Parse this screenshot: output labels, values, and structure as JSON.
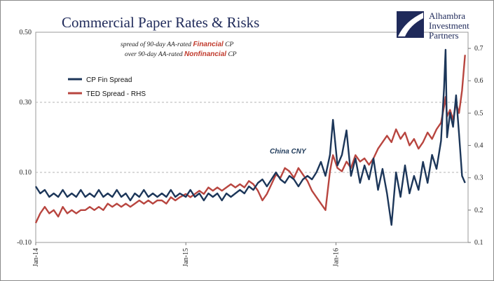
{
  "chart_data": {
    "type": "line",
    "title": "Commercial Paper Rates & Risks",
    "annotation": {
      "line1_prefix": "spread of 90-day AA-rated ",
      "line1_highlight": "Financial",
      "line1_suffix": " CP",
      "line2_prefix": "over 90-day AA-rated ",
      "line2_highlight": "Nonfinancial",
      "line2_suffix": " CP"
    },
    "event_label": "China CNY",
    "x_ticks": [
      "Jan-14",
      "Jan-15",
      "Jan-16"
    ],
    "y_left": {
      "min": -0.1,
      "max": 0.5,
      "ticks": [
        "0.50",
        "0.30",
        "0.10",
        "-0.10"
      ],
      "tick_values": [
        0.5,
        0.3,
        0.1,
        -0.1
      ]
    },
    "y_right": {
      "min": 0.1,
      "max": 0.75,
      "ticks": [
        "0.7",
        "0.6",
        "0.5",
        "0.4",
        "0.3",
        "0.2",
        "0.1"
      ],
      "tick_values": [
        0.7,
        0.6,
        0.5,
        0.4,
        0.3,
        0.2,
        0.1
      ]
    },
    "grid": "horizontal dashed",
    "legend_position": "upper-left",
    "colors": {
      "cp": "#1c3659",
      "ted": "#b8453f",
      "title": "#1f2a5a"
    },
    "series": [
      {
        "name": "CP Fin Spread",
        "axis": "left",
        "color": "#1c3659",
        "points": [
          [
            2014.0,
            0.06
          ],
          [
            2014.03,
            0.04
          ],
          [
            2014.06,
            0.05
          ],
          [
            2014.09,
            0.03
          ],
          [
            2014.12,
            0.04
          ],
          [
            2014.15,
            0.03
          ],
          [
            2014.18,
            0.05
          ],
          [
            2014.21,
            0.03
          ],
          [
            2014.24,
            0.04
          ],
          [
            2014.27,
            0.03
          ],
          [
            2014.3,
            0.05
          ],
          [
            2014.33,
            0.03
          ],
          [
            2014.36,
            0.04
          ],
          [
            2014.39,
            0.03
          ],
          [
            2014.42,
            0.05
          ],
          [
            2014.45,
            0.03
          ],
          [
            2014.48,
            0.04
          ],
          [
            2014.51,
            0.03
          ],
          [
            2014.54,
            0.05
          ],
          [
            2014.57,
            0.03
          ],
          [
            2014.6,
            0.04
          ],
          [
            2014.63,
            0.02
          ],
          [
            2014.66,
            0.04
          ],
          [
            2014.69,
            0.03
          ],
          [
            2014.72,
            0.05
          ],
          [
            2014.75,
            0.03
          ],
          [
            2014.78,
            0.04
          ],
          [
            2014.81,
            0.03
          ],
          [
            2014.84,
            0.04
          ],
          [
            2014.87,
            0.03
          ],
          [
            2014.9,
            0.05
          ],
          [
            2014.93,
            0.03
          ],
          [
            2014.96,
            0.04
          ],
          [
            2015.0,
            0.03
          ],
          [
            2015.03,
            0.05
          ],
          [
            2015.06,
            0.03
          ],
          [
            2015.09,
            0.04
          ],
          [
            2015.12,
            0.02
          ],
          [
            2015.15,
            0.04
          ],
          [
            2015.18,
            0.03
          ],
          [
            2015.21,
            0.04
          ],
          [
            2015.24,
            0.02
          ],
          [
            2015.27,
            0.04
          ],
          [
            2015.3,
            0.03
          ],
          [
            2015.33,
            0.04
          ],
          [
            2015.36,
            0.05
          ],
          [
            2015.39,
            0.04
          ],
          [
            2015.42,
            0.06
          ],
          [
            2015.45,
            0.05
          ],
          [
            2015.48,
            0.07
          ],
          [
            2015.51,
            0.08
          ],
          [
            2015.54,
            0.06
          ],
          [
            2015.57,
            0.08
          ],
          [
            2015.6,
            0.1
          ],
          [
            2015.63,
            0.08
          ],
          [
            2015.66,
            0.07
          ],
          [
            2015.69,
            0.09
          ],
          [
            2015.72,
            0.08
          ],
          [
            2015.75,
            0.06
          ],
          [
            2015.78,
            0.08
          ],
          [
            2015.81,
            0.09
          ],
          [
            2015.84,
            0.08
          ],
          [
            2015.87,
            0.1
          ],
          [
            2015.9,
            0.13
          ],
          [
            2015.93,
            0.09
          ],
          [
            2015.96,
            0.15
          ],
          [
            2015.98,
            0.25
          ],
          [
            2016.01,
            0.12
          ],
          [
            2016.04,
            0.15
          ],
          [
            2016.07,
            0.22
          ],
          [
            2016.1,
            0.09
          ],
          [
            2016.13,
            0.14
          ],
          [
            2016.16,
            0.07
          ],
          [
            2016.19,
            0.12
          ],
          [
            2016.22,
            0.08
          ],
          [
            2016.25,
            0.14
          ],
          [
            2016.28,
            0.05
          ],
          [
            2016.31,
            0.11
          ],
          [
            2016.34,
            0.04
          ],
          [
            2016.37,
            -0.05
          ],
          [
            2016.4,
            0.1
          ],
          [
            2016.43,
            0.03
          ],
          [
            2016.46,
            0.12
          ],
          [
            2016.49,
            0.04
          ],
          [
            2016.52,
            0.09
          ],
          [
            2016.55,
            0.05
          ],
          [
            2016.58,
            0.13
          ],
          [
            2016.61,
            0.07
          ],
          [
            2016.64,
            0.15
          ],
          [
            2016.67,
            0.11
          ],
          [
            2016.7,
            0.19
          ],
          [
            2016.72,
            0.34
          ],
          [
            2016.73,
            0.45
          ],
          [
            2016.74,
            0.2
          ],
          [
            2016.76,
            0.27
          ],
          [
            2016.78,
            0.23
          ],
          [
            2016.8,
            0.32
          ],
          [
            2016.82,
            0.21
          ],
          [
            2016.84,
            0.09
          ],
          [
            2016.86,
            0.07
          ]
        ]
      },
      {
        "name": "TED Spread - RHS",
        "axis": "right",
        "color": "#b8453f",
        "points": [
          [
            2014.0,
            0.16
          ],
          [
            2014.03,
            0.19
          ],
          [
            2014.06,
            0.21
          ],
          [
            2014.09,
            0.19
          ],
          [
            2014.12,
            0.2
          ],
          [
            2014.15,
            0.18
          ],
          [
            2014.18,
            0.21
          ],
          [
            2014.21,
            0.19
          ],
          [
            2014.24,
            0.2
          ],
          [
            2014.27,
            0.19
          ],
          [
            2014.3,
            0.2
          ],
          [
            2014.33,
            0.2
          ],
          [
            2014.36,
            0.21
          ],
          [
            2014.39,
            0.2
          ],
          [
            2014.42,
            0.21
          ],
          [
            2014.45,
            0.2
          ],
          [
            2014.48,
            0.22
          ],
          [
            2014.51,
            0.21
          ],
          [
            2014.54,
            0.22
          ],
          [
            2014.57,
            0.21
          ],
          [
            2014.6,
            0.22
          ],
          [
            2014.63,
            0.21
          ],
          [
            2014.66,
            0.22
          ],
          [
            2014.69,
            0.23
          ],
          [
            2014.72,
            0.22
          ],
          [
            2014.75,
            0.23
          ],
          [
            2014.78,
            0.22
          ],
          [
            2014.81,
            0.23
          ],
          [
            2014.84,
            0.23
          ],
          [
            2014.87,
            0.22
          ],
          [
            2014.9,
            0.24
          ],
          [
            2014.93,
            0.23
          ],
          [
            2014.96,
            0.24
          ],
          [
            2015.0,
            0.25
          ],
          [
            2015.03,
            0.24
          ],
          [
            2015.06,
            0.25
          ],
          [
            2015.09,
            0.26
          ],
          [
            2015.12,
            0.25
          ],
          [
            2015.15,
            0.27
          ],
          [
            2015.18,
            0.26
          ],
          [
            2015.21,
            0.27
          ],
          [
            2015.24,
            0.26
          ],
          [
            2015.27,
            0.27
          ],
          [
            2015.3,
            0.28
          ],
          [
            2015.33,
            0.27
          ],
          [
            2015.36,
            0.28
          ],
          [
            2015.39,
            0.27
          ],
          [
            2015.42,
            0.29
          ],
          [
            2015.45,
            0.28
          ],
          [
            2015.48,
            0.26
          ],
          [
            2015.51,
            0.23
          ],
          [
            2015.54,
            0.25
          ],
          [
            2015.57,
            0.28
          ],
          [
            2015.6,
            0.31
          ],
          [
            2015.63,
            0.3
          ],
          [
            2015.66,
            0.33
          ],
          [
            2015.69,
            0.32
          ],
          [
            2015.72,
            0.3
          ],
          [
            2015.75,
            0.33
          ],
          [
            2015.78,
            0.31
          ],
          [
            2015.81,
            0.29
          ],
          [
            2015.84,
            0.26
          ],
          [
            2015.87,
            0.24
          ],
          [
            2015.9,
            0.22
          ],
          [
            2015.93,
            0.2
          ],
          [
            2015.96,
            0.32
          ],
          [
            2015.98,
            0.37
          ],
          [
            2016.01,
            0.33
          ],
          [
            2016.04,
            0.32
          ],
          [
            2016.07,
            0.35
          ],
          [
            2016.1,
            0.33
          ],
          [
            2016.13,
            0.37
          ],
          [
            2016.16,
            0.35
          ],
          [
            2016.19,
            0.36
          ],
          [
            2016.22,
            0.34
          ],
          [
            2016.25,
            0.36
          ],
          [
            2016.28,
            0.39
          ],
          [
            2016.31,
            0.41
          ],
          [
            2016.34,
            0.43
          ],
          [
            2016.37,
            0.41
          ],
          [
            2016.4,
            0.45
          ],
          [
            2016.43,
            0.42
          ],
          [
            2016.46,
            0.44
          ],
          [
            2016.49,
            0.4
          ],
          [
            2016.52,
            0.42
          ],
          [
            2016.55,
            0.39
          ],
          [
            2016.58,
            0.41
          ],
          [
            2016.61,
            0.44
          ],
          [
            2016.64,
            0.42
          ],
          [
            2016.67,
            0.45
          ],
          [
            2016.7,
            0.47
          ],
          [
            2016.72,
            0.52
          ],
          [
            2016.73,
            0.55
          ],
          [
            2016.74,
            0.49
          ],
          [
            2016.76,
            0.51
          ],
          [
            2016.78,
            0.48
          ],
          [
            2016.8,
            0.53
          ],
          [
            2016.82,
            0.5
          ],
          [
            2016.84,
            0.57
          ],
          [
            2016.86,
            0.68
          ]
        ]
      }
    ]
  },
  "brand": {
    "line1": "Alhambra",
    "line2": "Investment",
    "line3": "Partners"
  }
}
